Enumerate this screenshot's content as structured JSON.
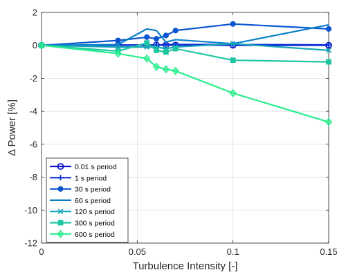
{
  "chart_data": {
    "type": "line",
    "title": "",
    "xlabel": "Turbulence Intensity [-]",
    "ylabel": "Δ Power [%]",
    "xlim": [
      0,
      0.15
    ],
    "ylim": [
      -12,
      2
    ],
    "xticks": [
      0,
      0.05,
      0.1,
      0.15
    ],
    "xtick_labels": [
      "0",
      "0.05",
      "0.1",
      "0.15"
    ],
    "yticks": [
      2,
      0,
      -2,
      -4,
      -6,
      -8,
      -10,
      -12
    ],
    "ytick_labels": [
      "2",
      "0",
      "-2",
      "-4",
      "-6",
      "-8",
      "-10",
      "-12"
    ],
    "grid": true,
    "legend_position": "bottom-left",
    "series": [
      {
        "name": "0.01 s period",
        "color": "#0a14c8",
        "marker": "circle-open",
        "x": [
          0,
          0.04,
          0.055,
          0.06,
          0.065,
          0.07,
          0.1,
          0.15
        ],
        "y": [
          0,
          0.02,
          0.02,
          0.02,
          0.02,
          0.02,
          0.01,
          0.01
        ]
      },
      {
        "name": "1 s period",
        "color": "#0a30d6",
        "marker": "plus",
        "x": [
          0,
          0.04,
          0.055,
          0.06,
          0.065,
          0.07,
          0.1,
          0.15
        ],
        "y": [
          0,
          0.0,
          0.02,
          0.02,
          0.05,
          0.05,
          0.05,
          0.03
        ]
      },
      {
        "name": "30 s period",
        "color": "#0a56d0",
        "marker": "circle-filled",
        "x": [
          0,
          0.04,
          0.055,
          0.06,
          0.065,
          0.07,
          0.1,
          0.15
        ],
        "y": [
          0,
          0.3,
          0.5,
          0.4,
          0.6,
          0.9,
          1.3,
          1.0
        ]
      },
      {
        "name": "60 s period",
        "color": "#0a7fc8",
        "marker": "none",
        "x": [
          0,
          0.04,
          0.055,
          0.06,
          0.065,
          0.07,
          0.1,
          0.15
        ],
        "y": [
          0,
          0.05,
          1.0,
          0.9,
          0.2,
          0.35,
          0.1,
          1.25
        ]
      },
      {
        "name": "120 s period",
        "color": "#16a6b8",
        "marker": "x",
        "x": [
          0,
          0.04,
          0.055,
          0.06,
          0.065,
          0.07,
          0.1,
          0.15
        ],
        "y": [
          0,
          -0.1,
          -0.1,
          -0.1,
          -0.2,
          -0.1,
          0.1,
          -0.3
        ]
      },
      {
        "name": "300 s period",
        "color": "#1ec5a2",
        "marker": "square",
        "x": [
          0,
          0.04,
          0.055,
          0.06,
          0.065,
          0.07,
          0.1,
          0.15
        ],
        "y": [
          0,
          -0.35,
          0.15,
          -0.3,
          -0.4,
          -0.2,
          -0.9,
          -1.0
        ]
      },
      {
        "name": "600 s period",
        "color": "#29ee8c",
        "marker": "diamond",
        "x": [
          0,
          0.04,
          0.055,
          0.06,
          0.065,
          0.07,
          0.1,
          0.15
        ],
        "y": [
          0,
          -0.5,
          -0.8,
          -1.3,
          -1.45,
          -1.55,
          -2.9,
          -4.65
        ]
      }
    ]
  }
}
